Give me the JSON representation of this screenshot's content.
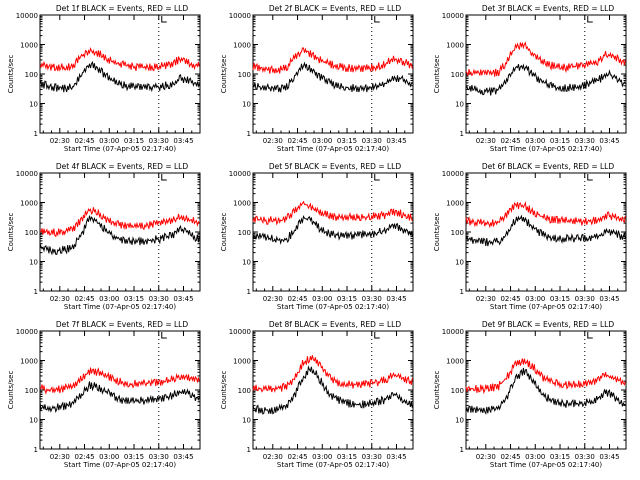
{
  "figure": {
    "colors": {
      "events": "#000000",
      "lld": "#ff0000",
      "axes": "#000000"
    },
    "xlabel": "Start Time (07-Apr-05 02:17:40)",
    "ylabel": "Counts/sec",
    "x_ticklabels": [
      "02:30",
      "02:45",
      "03:00",
      "03:15",
      "03:30",
      "03:45"
    ],
    "y_ticklabels": [
      "1",
      "10",
      "100",
      "1000",
      "10000"
    ]
  },
  "chart_data": [
    {
      "type": "line",
      "title": "Det 1f BLACK = Events, RED = LLD",
      "xlabel": "Start Time (07-Apr-05 02:17:40)",
      "ylabel": "Counts/sec",
      "y_scale": "log",
      "ylim": [
        1,
        10000
      ],
      "x_ticks": [
        "02:30",
        "02:45",
        "03:00",
        "03:15",
        "03:30",
        "03:45"
      ],
      "marker_label": "L",
      "time_minutes": [
        0,
        5,
        10,
        15,
        20,
        25,
        30,
        35,
        40,
        45,
        50,
        55,
        60,
        65,
        70,
        75,
        80,
        85,
        90,
        95
      ],
      "series": [
        {
          "name": "Events",
          "color": "black",
          "values": [
            55,
            45,
            40,
            38,
            42,
            110,
            250,
            180,
            100,
            70,
            50,
            45,
            42,
            40,
            42,
            45,
            55,
            85,
            70,
            50
          ]
        },
        {
          "name": "LLD",
          "color": "red",
          "values": [
            220,
            210,
            200,
            200,
            220,
            450,
            700,
            600,
            400,
            300,
            240,
            210,
            200,
            200,
            210,
            220,
            260,
            380,
            300,
            230
          ]
        }
      ]
    },
    {
      "type": "line",
      "title": "Det 2f BLACK = Events, RED = LLD",
      "xlabel": "Start Time (07-Apr-05 02:17:40)",
      "ylabel": "Counts/sec",
      "y_scale": "log",
      "ylim": [
        1,
        10000
      ],
      "x_ticks": [
        "02:30",
        "02:45",
        "03:00",
        "03:15",
        "03:30",
        "03:45"
      ],
      "marker_label": "L",
      "time_minutes": [
        0,
        5,
        10,
        15,
        20,
        25,
        30,
        35,
        40,
        45,
        50,
        55,
        60,
        65,
        70,
        75,
        80,
        85,
        90,
        95
      ],
      "series": [
        {
          "name": "Events",
          "color": "black",
          "values": [
            50,
            42,
            38,
            35,
            40,
            100,
            230,
            170,
            95,
            65,
            50,
            42,
            40,
            38,
            40,
            45,
            55,
            90,
            80,
            55
          ]
        },
        {
          "name": "LLD",
          "color": "red",
          "values": [
            210,
            180,
            160,
            160,
            190,
            420,
            700,
            580,
            380,
            280,
            220,
            190,
            180,
            180,
            190,
            210,
            250,
            380,
            320,
            240
          ]
        }
      ]
    },
    {
      "type": "line",
      "title": "Det 3f BLACK = Events, RED = LLD",
      "xlabel": "Start Time (07-Apr-05 02:17:40)",
      "ylabel": "Counts/sec",
      "y_scale": "log",
      "ylim": [
        1,
        10000
      ],
      "x_ticks": [
        "02:30",
        "02:45",
        "03:00",
        "03:15",
        "03:30",
        "03:45"
      ],
      "marker_label": "L",
      "time_minutes": [
        0,
        5,
        10,
        15,
        20,
        25,
        30,
        35,
        40,
        45,
        50,
        55,
        60,
        65,
        70,
        75,
        80,
        85,
        90,
        95
      ],
      "series": [
        {
          "name": "Events",
          "color": "black",
          "values": [
            40,
            35,
            32,
            30,
            34,
            70,
            200,
            220,
            120,
            70,
            50,
            42,
            40,
            40,
            45,
            55,
            70,
            120,
            100,
            60
          ]
        },
        {
          "name": "LLD",
          "color": "red",
          "values": [
            140,
            130,
            120,
            120,
            140,
            320,
            1000,
            1100,
            600,
            350,
            240,
            200,
            200,
            200,
            220,
            260,
            320,
            550,
            450,
            300
          ]
        }
      ]
    },
    {
      "type": "line",
      "title": "Det 4f BLACK = Events, RED = LLD",
      "xlabel": "Start Time (07-Apr-05 02:17:40)",
      "ylabel": "Counts/sec",
      "y_scale": "log",
      "ylim": [
        1,
        10000
      ],
      "x_ticks": [
        "02:30",
        "02:45",
        "03:00",
        "03:15",
        "03:30",
        "03:45"
      ],
      "marker_label": "L",
      "time_minutes": [
        0,
        5,
        10,
        15,
        20,
        25,
        30,
        35,
        40,
        45,
        50,
        55,
        60,
        65,
        70,
        75,
        80,
        85,
        90,
        95
      ],
      "series": [
        {
          "name": "Events",
          "color": "black",
          "values": [
            35,
            30,
            28,
            30,
            35,
            90,
            350,
            260,
            130,
            80,
            60,
            55,
            55,
            60,
            65,
            75,
            90,
            150,
            110,
            70
          ]
        },
        {
          "name": "LLD",
          "color": "red",
          "values": [
            130,
            120,
            110,
            120,
            140,
            300,
            700,
            560,
            330,
            230,
            200,
            190,
            190,
            200,
            210,
            240,
            280,
            380,
            320,
            250
          ]
        }
      ]
    },
    {
      "type": "line",
      "title": "Det 5f BLACK = Events, RED = LLD",
      "xlabel": "Start Time (07-Apr-05 02:17:40)",
      "ylabel": "Counts/sec",
      "y_scale": "log",
      "ylim": [
        1,
        10000
      ],
      "x_ticks": [
        "02:30",
        "02:45",
        "03:00",
        "03:15",
        "03:30",
        "03:45"
      ],
      "marker_label": "L",
      "time_minutes": [
        0,
        5,
        10,
        15,
        20,
        25,
        30,
        35,
        40,
        45,
        50,
        55,
        60,
        65,
        70,
        75,
        80,
        85,
        90,
        95
      ],
      "series": [
        {
          "name": "Events",
          "color": "black",
          "values": [
            90,
            80,
            70,
            65,
            65,
            120,
            350,
            300,
            160,
            110,
            95,
            90,
            90,
            95,
            100,
            110,
            130,
            200,
            150,
            100
          ]
        },
        {
          "name": "LLD",
          "color": "red",
          "values": [
            330,
            300,
            290,
            290,
            320,
            550,
            1050,
            900,
            600,
            450,
            380,
            360,
            360,
            370,
            380,
            400,
            440,
            560,
            480,
            380
          ]
        }
      ]
    },
    {
      "type": "line",
      "title": "Det 6f BLACK = Events, RED = LLD",
      "xlabel": "Start Time (07-Apr-05 02:17:40)",
      "ylabel": "Counts/sec",
      "y_scale": "log",
      "ylim": [
        1,
        10000
      ],
      "x_ticks": [
        "02:30",
        "02:45",
        "03:00",
        "03:15",
        "03:30",
        "03:45"
      ],
      "marker_label": "L",
      "time_minutes": [
        0,
        5,
        10,
        15,
        20,
        25,
        30,
        35,
        40,
        45,
        50,
        55,
        60,
        65,
        70,
        75,
        80,
        85,
        90,
        95
      ],
      "series": [
        {
          "name": "Events",
          "color": "black",
          "values": [
            70,
            60,
            55,
            52,
            55,
            110,
            300,
            330,
            180,
            110,
            85,
            75,
            70,
            70,
            70,
            75,
            85,
            130,
            110,
            80
          ]
        },
        {
          "name": "LLD",
          "color": "red",
          "values": [
            270,
            250,
            240,
            240,
            270,
            500,
            900,
            950,
            600,
            420,
            330,
            300,
            280,
            270,
            270,
            280,
            300,
            420,
            380,
            300
          ]
        }
      ]
    },
    {
      "type": "line",
      "title": "Det 7f BLACK = Events, RED = LLD",
      "xlabel": "Start Time (07-Apr-05 02:17:40)",
      "ylabel": "Counts/sec",
      "y_scale": "log",
      "ylim": [
        1,
        10000
      ],
      "x_ticks": [
        "02:30",
        "02:45",
        "03:00",
        "03:15",
        "03:30",
        "03:45"
      ],
      "marker_label": "L",
      "time_minutes": [
        0,
        5,
        10,
        15,
        20,
        25,
        30,
        35,
        40,
        45,
        50,
        55,
        60,
        65,
        70,
        75,
        80,
        85,
        90,
        95
      ],
      "series": [
        {
          "name": "Events",
          "color": "black",
          "values": [
            35,
            30,
            30,
            32,
            40,
            80,
            170,
            150,
            100,
            70,
            55,
            50,
            50,
            52,
            55,
            62,
            75,
            110,
            90,
            65
          ]
        },
        {
          "name": "LLD",
          "color": "red",
          "values": [
            140,
            120,
            120,
            130,
            160,
            300,
            500,
            460,
            340,
            260,
            210,
            190,
            190,
            200,
            210,
            230,
            270,
            340,
            310,
            240
          ]
        }
      ]
    },
    {
      "type": "line",
      "title": "Det 8f BLACK = Events, RED = LLD",
      "xlabel": "Start Time (07-Apr-05 02:17:40)",
      "ylabel": "Counts/sec",
      "y_scale": "log",
      "ylim": [
        1,
        10000
      ],
      "x_ticks": [
        "02:30",
        "02:45",
        "03:00",
        "03:15",
        "03:30",
        "03:45"
      ],
      "marker_label": "L",
      "time_minutes": [
        0,
        5,
        10,
        15,
        20,
        25,
        30,
        35,
        40,
        45,
        50,
        55,
        60,
        65,
        70,
        75,
        80,
        85,
        90,
        95
      ],
      "series": [
        {
          "name": "Events",
          "color": "black",
          "values": [
            28,
            25,
            25,
            26,
            30,
            70,
            300,
            700,
            300,
            100,
            60,
            45,
            40,
            38,
            40,
            45,
            55,
            90,
            60,
            40
          ]
        },
        {
          "name": "LLD",
          "color": "red",
          "values": [
            140,
            130,
            130,
            130,
            150,
            300,
            900,
            1500,
            900,
            400,
            230,
            190,
            180,
            180,
            190,
            210,
            250,
            380,
            320,
            220
          ]
        }
      ]
    },
    {
      "type": "line",
      "title": "Det 9f BLACK = Events, RED = LLD",
      "xlabel": "Start Time (07-Apr-05 02:17:40)",
      "ylabel": "Counts/sec",
      "y_scale": "log",
      "ylim": [
        1,
        10000
      ],
      "x_ticks": [
        "02:30",
        "02:45",
        "03:00",
        "03:15",
        "03:30",
        "03:45"
      ],
      "marker_label": "L",
      "time_minutes": [
        0,
        5,
        10,
        15,
        20,
        25,
        30,
        35,
        40,
        45,
        50,
        55,
        60,
        65,
        70,
        75,
        80,
        85,
        90,
        95
      ],
      "series": [
        {
          "name": "Events",
          "color": "black",
          "values": [
            28,
            25,
            25,
            26,
            30,
            70,
            280,
            550,
            280,
            100,
            60,
            45,
            40,
            40,
            42,
            48,
            60,
            100,
            65,
            40
          ]
        },
        {
          "name": "LLD",
          "color": "red",
          "values": [
            140,
            130,
            130,
            135,
            160,
            320,
            900,
            1200,
            800,
            380,
            230,
            190,
            180,
            180,
            190,
            210,
            260,
            380,
            320,
            220
          ]
        }
      ]
    }
  ]
}
